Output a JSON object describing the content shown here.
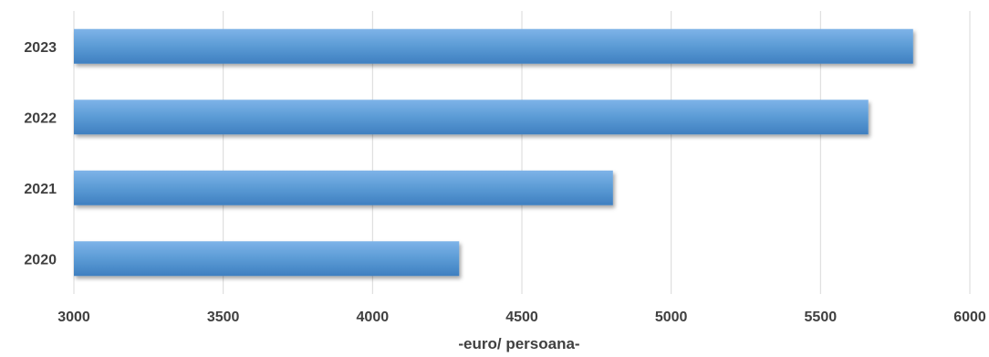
{
  "chart_data": {
    "type": "bar",
    "orientation": "horizontal",
    "categories": [
      "2023",
      "2022",
      "2021",
      "2020"
    ],
    "values": [
      5810,
      5660,
      4805,
      4290
    ],
    "title": "",
    "xlabel": "-euro/ persoana-",
    "ylabel": "",
    "xlim": [
      3000,
      6000
    ],
    "xticks": [
      "3000",
      "3500",
      "4000",
      "4500",
      "5000",
      "5500",
      "6000"
    ],
    "grid": "vertical",
    "legend": "none",
    "bar_color": "#5b9bd5",
    "bar_color_light": "#7eb3e8",
    "bar_color_dark": "#3f7fc0"
  }
}
